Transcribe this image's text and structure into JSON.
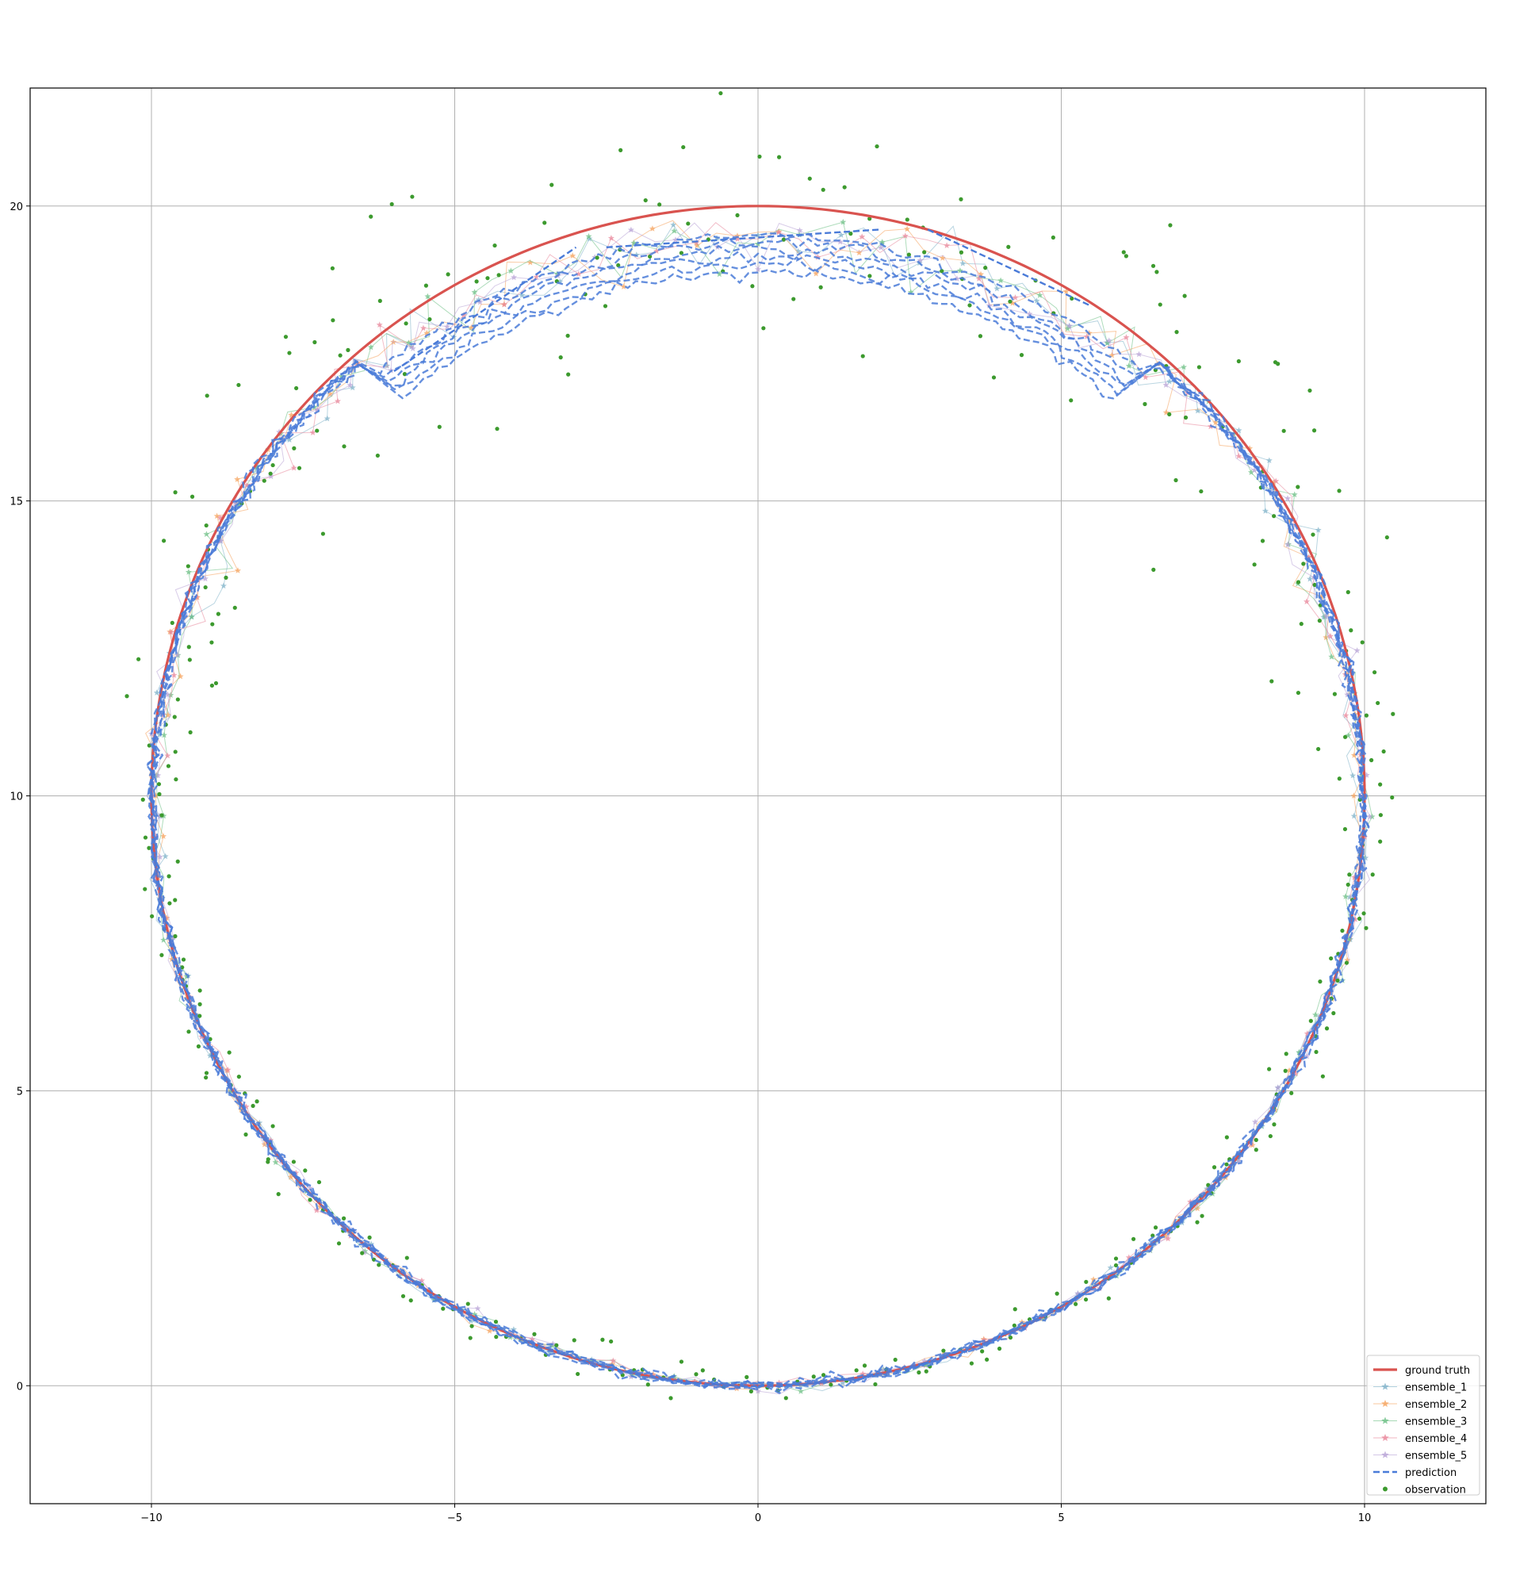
{
  "chart_data": {
    "type": "line",
    "title": "",
    "xlabel": "",
    "ylabel": "",
    "xlim": [
      -12.0,
      12.0
    ],
    "ylim": [
      -2.0,
      22.0
    ],
    "xticks": [
      -10,
      -5,
      0,
      5,
      10
    ],
    "yticks": [
      0,
      5,
      10,
      15,
      20
    ],
    "grid": true,
    "legend_position": "lower-right",
    "colors": {
      "ground_truth": "#d9534f",
      "ensemble_1": "#7fb2c9",
      "ensemble_2": "#f5a25d",
      "ensemble_3": "#6cbf84",
      "ensemble_4": "#e8869a",
      "ensemble_5": "#b8a2d6",
      "prediction": "#4a7bd8",
      "observation": "#3c9a2e"
    },
    "ground_truth": {
      "shape": "circle",
      "center": [
        0,
        10
      ],
      "radius": 10,
      "start": [
        0,
        0
      ],
      "direction": "counterclockwise"
    },
    "series": [
      {
        "name": "ground truth",
        "style": "solid line"
      },
      {
        "name": "ensemble_1",
        "style": "thin line with star markers"
      },
      {
        "name": "ensemble_2",
        "style": "thin line with star markers"
      },
      {
        "name": "ensemble_3",
        "style": "thin line with star markers"
      },
      {
        "name": "ensemble_4",
        "style": "thin line with star markers"
      },
      {
        "name": "ensemble_5",
        "style": "thin line with star markers"
      },
      {
        "name": "prediction",
        "style": "dashed line"
      },
      {
        "name": "observation",
        "style": "dots"
      }
    ],
    "prediction_dip_at_top": {
      "x": [
        -3.0,
        3.0
      ],
      "y_min": 19.3
    },
    "prediction_shortcut_segments": [
      {
        "x": [
          -6.0,
          -3.0
        ],
        "y": [
          17.2,
          19.3
        ]
      },
      {
        "x": [
          -2.5,
          2.0
        ],
        "y": [
          19.3,
          19.6
        ]
      },
      {
        "x": [
          2.8,
          5.5
        ],
        "y": [
          19.6,
          18.3
        ]
      }
    ],
    "observation_noise": {
      "lower_half": 0.15,
      "upper_half": 0.8,
      "outer_offset_range": [
        0.0,
        1.6
      ]
    },
    "sample_count": 360
  }
}
